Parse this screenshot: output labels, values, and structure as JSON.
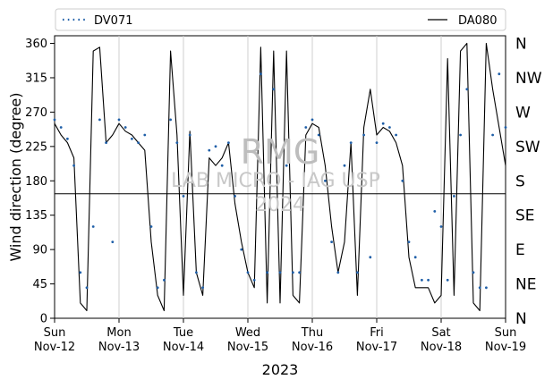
{
  "chart_data": {
    "type": "line",
    "title": "",
    "xlabel": "2023",
    "ylabel": "Wind direction (degree)",
    "ylim": [
      0,
      370
    ],
    "yticks": [
      0,
      45,
      90,
      135,
      180,
      225,
      270,
      315,
      360
    ],
    "grid_x": true,
    "legend_position": "top",
    "x_ticks": [
      {
        "day": "Sun",
        "date": "Nov-12"
      },
      {
        "day": "Mon",
        "date": "Nov-13"
      },
      {
        "day": "Tue",
        "date": "Nov-14"
      },
      {
        "day": "Wed",
        "date": "Nov-15"
      },
      {
        "day": "Thu",
        "date": "Nov-16"
      },
      {
        "day": "Fri",
        "date": "Nov-17"
      },
      {
        "day": "Sat",
        "date": "Nov-18"
      },
      {
        "day": "Sun",
        "date": "Nov-19"
      }
    ],
    "direction_labels": [
      {
        "value": 0,
        "label": "N"
      },
      {
        "value": 45,
        "label": "NE"
      },
      {
        "value": 90,
        "label": "E"
      },
      {
        "value": 135,
        "label": "SE"
      },
      {
        "value": 180,
        "label": "S"
      },
      {
        "value": 225,
        "label": "SW"
      },
      {
        "value": 270,
        "label": "W"
      },
      {
        "value": 315,
        "label": "NW"
      },
      {
        "value": 360,
        "label": "N"
      }
    ],
    "hline": 163,
    "watermark": {
      "line1": "RMG",
      "line2": "LAB MICRO - IAG USP",
      "line3": "2024"
    },
    "series": [
      {
        "name": "DV071",
        "style": "dotted",
        "color": "#1f5fa8",
        "x": [
          0.0,
          0.1,
          0.2,
          0.3,
          0.4,
          0.5,
          0.6,
          0.7,
          0.8,
          0.9,
          1.0,
          1.1,
          1.2,
          1.3,
          1.4,
          1.5,
          1.6,
          1.7,
          1.8,
          1.9,
          2.0,
          2.1,
          2.2,
          2.3,
          2.4,
          2.5,
          2.6,
          2.7,
          2.8,
          2.9,
          3.0,
          3.1,
          3.2,
          3.3,
          3.4,
          3.5,
          3.6,
          3.7,
          3.8,
          3.9,
          4.0,
          4.1,
          4.2,
          4.3,
          4.4,
          4.5,
          4.6,
          4.7,
          4.8,
          4.9,
          5.0,
          5.1,
          5.2,
          5.3,
          5.4,
          5.5,
          5.6,
          5.7,
          5.8,
          5.9,
          6.0,
          6.1,
          6.2,
          6.3,
          6.4,
          6.5,
          6.6,
          6.7,
          6.8,
          6.9,
          7.0
        ],
        "y": [
          260,
          250,
          235,
          200,
          60,
          40,
          120,
          260,
          230,
          100,
          260,
          250,
          235,
          230,
          240,
          120,
          40,
          50,
          260,
          230,
          160,
          240,
          60,
          40,
          220,
          225,
          200,
          230,
          160,
          90,
          60,
          50,
          320,
          60,
          300,
          60,
          200,
          60,
          60,
          250,
          260,
          240,
          180,
          100,
          60,
          200,
          230,
          60,
          240,
          80,
          230,
          255,
          250,
          240,
          180,
          100,
          80,
          50,
          50,
          140,
          120,
          50,
          160,
          240,
          300,
          60,
          40,
          40,
          240,
          320,
          250
        ]
      },
      {
        "name": "DA080",
        "style": "solid",
        "color": "#000000",
        "x": [
          0.0,
          0.1,
          0.2,
          0.3,
          0.4,
          0.5,
          0.6,
          0.7,
          0.8,
          0.9,
          1.0,
          1.1,
          1.2,
          1.3,
          1.4,
          1.5,
          1.6,
          1.7,
          1.8,
          1.9,
          2.0,
          2.1,
          2.2,
          2.3,
          2.4,
          2.5,
          2.6,
          2.7,
          2.8,
          2.9,
          3.0,
          3.1,
          3.2,
          3.3,
          3.4,
          3.5,
          3.6,
          3.7,
          3.8,
          3.9,
          4.0,
          4.1,
          4.2,
          4.3,
          4.4,
          4.5,
          4.6,
          4.7,
          4.8,
          4.9,
          5.0,
          5.1,
          5.2,
          5.3,
          5.4,
          5.5,
          5.6,
          5.7,
          5.8,
          5.9,
          6.0,
          6.1,
          6.2,
          6.3,
          6.4,
          6.5,
          6.6,
          6.7,
          6.8,
          6.9,
          7.0
        ],
        "y": [
          255,
          240,
          230,
          210,
          20,
          10,
          350,
          355,
          230,
          240,
          255,
          245,
          240,
          230,
          220,
          100,
          30,
          10,
          350,
          240,
          30,
          245,
          60,
          30,
          210,
          200,
          210,
          230,
          150,
          100,
          60,
          40,
          355,
          20,
          350,
          20,
          350,
          30,
          20,
          240,
          255,
          250,
          200,
          120,
          60,
          100,
          230,
          30,
          250,
          300,
          240,
          250,
          245,
          230,
          200,
          80,
          40,
          40,
          40,
          20,
          30,
          340,
          30,
          350,
          360,
          20,
          10,
          360,
          300,
          250,
          200
        ]
      }
    ]
  }
}
